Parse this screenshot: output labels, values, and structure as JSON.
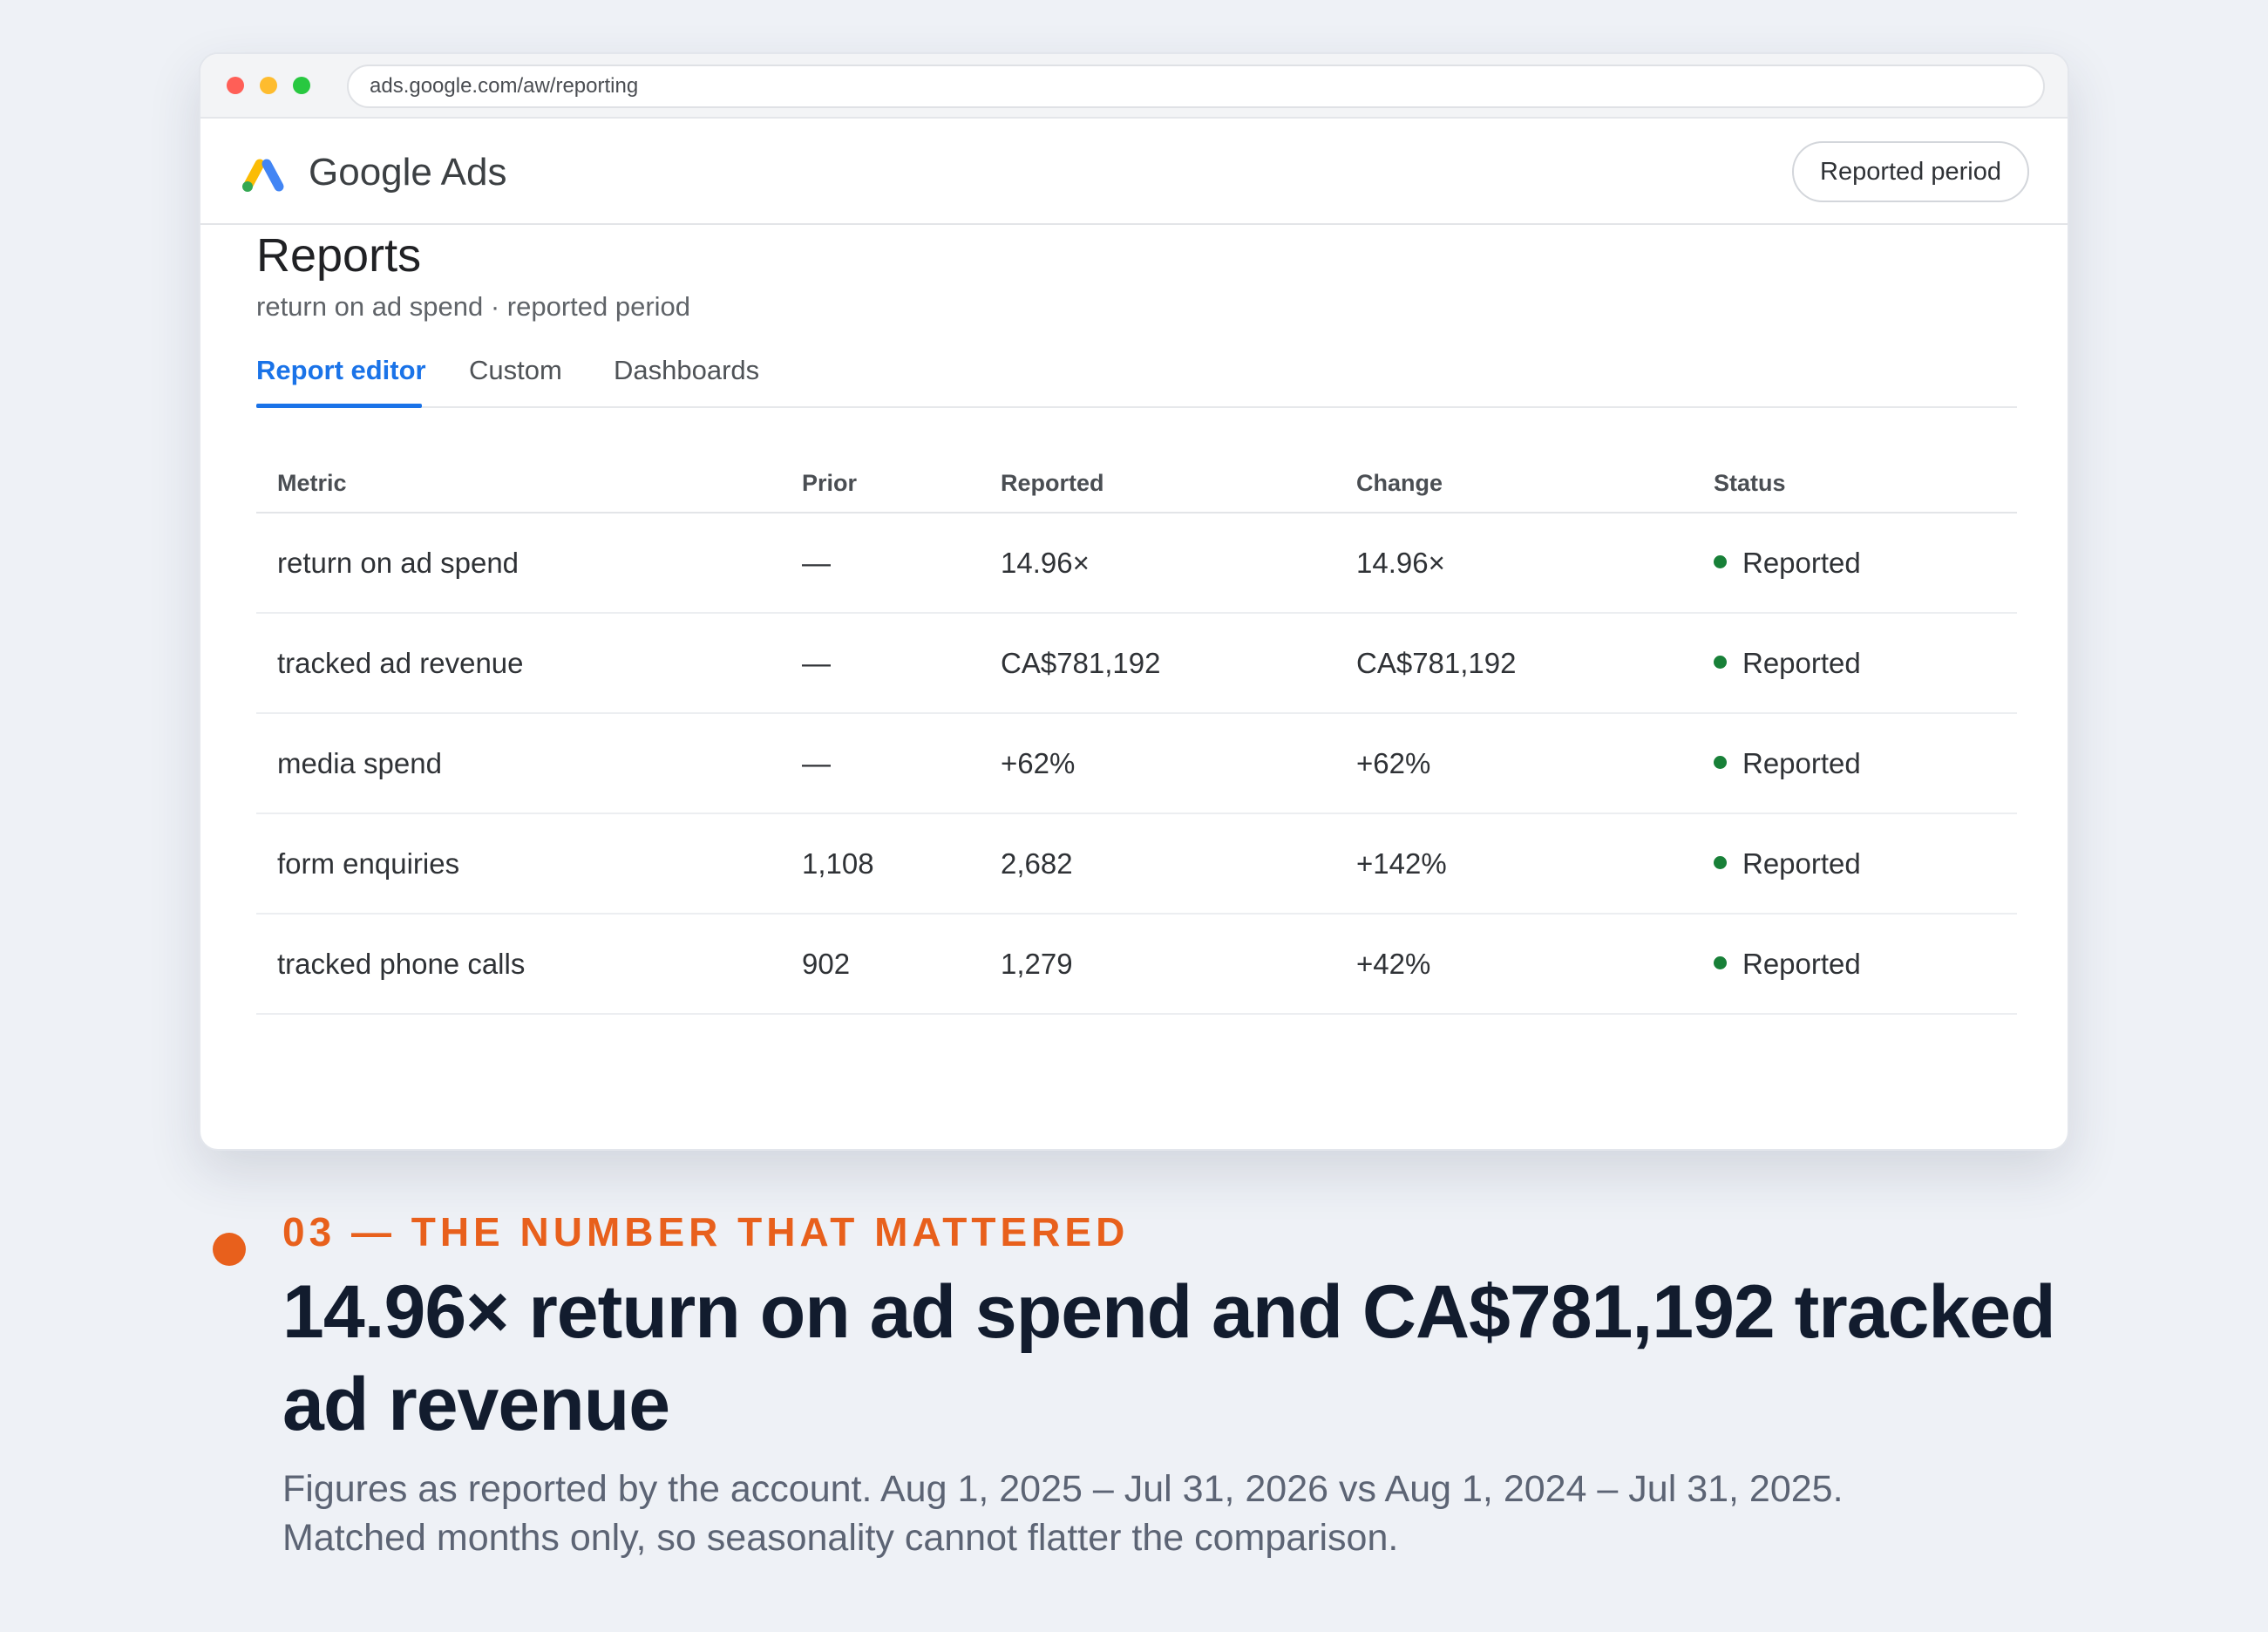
{
  "browser": {
    "url": "ads.google.com/aw/reporting"
  },
  "app": {
    "name": "Google Ads",
    "period_button": "Reported period"
  },
  "page": {
    "title": "Reports",
    "subtitle": "return on ad spend · reported period"
  },
  "tabs": [
    {
      "label": "Report editor",
      "active": true
    },
    {
      "label": "Custom",
      "active": false
    },
    {
      "label": "Dashboards",
      "active": false
    }
  ],
  "table": {
    "columns": [
      "Metric",
      "Prior",
      "Reported",
      "Change",
      "Status"
    ],
    "rows": [
      {
        "metric": "return on ad spend",
        "prior": "—",
        "reported": "14.96×",
        "change": "14.96×",
        "status": "Reported"
      },
      {
        "metric": "tracked ad revenue",
        "prior": "—",
        "reported": "CA$781,192",
        "change": "CA$781,192",
        "status": "Reported"
      },
      {
        "metric": "media spend",
        "prior": "—",
        "reported": "+62%",
        "change": "+62%",
        "status": "Reported"
      },
      {
        "metric": "form enquiries",
        "prior": "1,108",
        "reported": "2,682",
        "change": "+142%",
        "status": "Reported"
      },
      {
        "metric": "tracked phone calls",
        "prior": "902",
        "reported": "1,279",
        "change": "+42%",
        "status": "Reported"
      }
    ]
  },
  "caption": {
    "eyebrow": "03 — THE NUMBER THAT MATTERED",
    "headline": "14.96× return on ad spend and CA$781,192 tracked ad revenue",
    "footnote_line1": "Figures as reported by the account. Aug 1, 2025 – Jul 31, 2026 vs Aug 1, 2024 – Jul 31, 2025.",
    "footnote_line2": "Matched months only, so seasonality cannot flatter the comparison."
  },
  "colors": {
    "accent_blue": "#1a73e8",
    "status_green": "#188038",
    "eyebrow_orange": "#e8601c",
    "headline_navy": "#121c2e"
  }
}
